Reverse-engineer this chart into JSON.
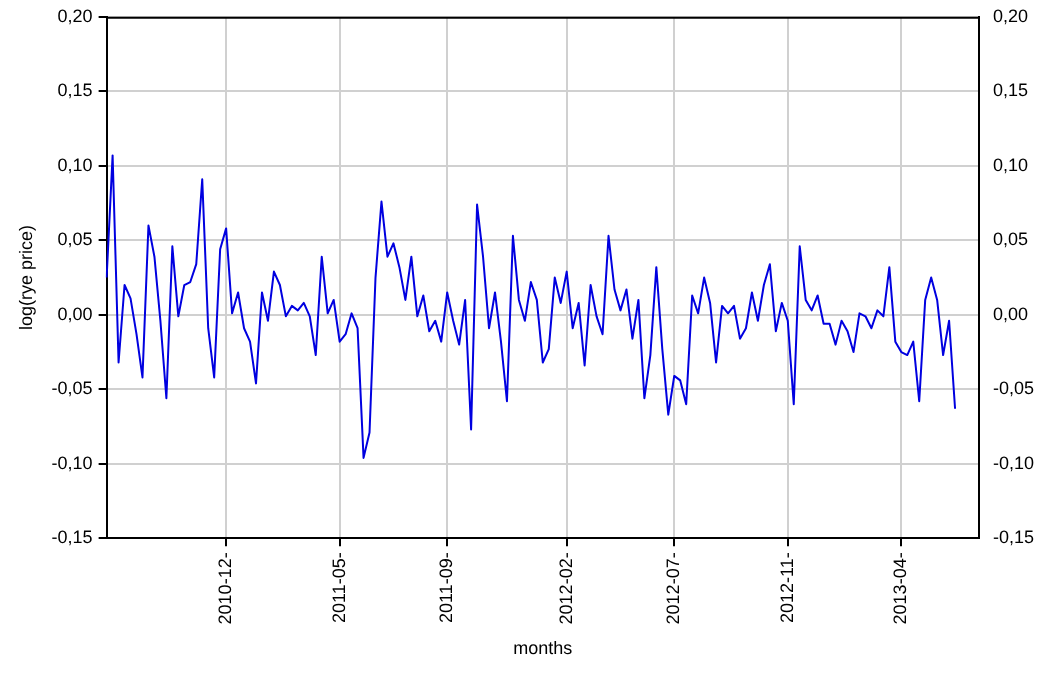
{
  "chart_data": {
    "type": "line",
    "xlabel": "months",
    "ylabel": "log(rye price)",
    "categories": [
      null,
      null,
      null,
      null,
      null,
      null,
      null,
      null,
      null,
      null,
      null,
      null,
      null,
      null,
      null,
      null,
      null,
      null,
      null,
      null,
      "2010-12-",
      null,
      null,
      null,
      null,
      null,
      null,
      null,
      null,
      null,
      null,
      null,
      null,
      null,
      null,
      null,
      null,
      null,
      null,
      "2011-05-",
      null,
      null,
      null,
      null,
      null,
      null,
      null,
      null,
      null,
      null,
      null,
      null,
      null,
      null,
      null,
      null,
      null,
      "2011-09-",
      null,
      null,
      null,
      null,
      null,
      null,
      null,
      null,
      null,
      null,
      null,
      null,
      null,
      null,
      null,
      null,
      null,
      null,
      null,
      "2012-02-",
      null,
      null,
      null,
      null,
      null,
      null,
      null,
      null,
      null,
      null,
      null,
      null,
      null,
      null,
      null,
      null,
      null,
      "2012-07-",
      null,
      null,
      null,
      null,
      null,
      null,
      null,
      null,
      null,
      null,
      null,
      null,
      null,
      null,
      null,
      null,
      null,
      null,
      "2012-11-",
      null,
      null,
      null,
      null,
      null,
      null,
      null,
      null,
      null,
      null,
      null,
      null,
      null,
      null,
      null,
      null,
      null,
      null,
      "2013-04-",
      null,
      null,
      null,
      null,
      null,
      null,
      null,
      null,
      null,
      null,
      null,
      null,
      null
    ],
    "ylim": [
      -0.15,
      0.2
    ],
    "yticks": [
      {
        "value": -0.15,
        "label": "-0,15"
      },
      {
        "value": -0.1,
        "label": "-0,10"
      },
      {
        "value": -0.05,
        "label": "-0,05"
      },
      {
        "value": 0,
        "label": "0,00"
      },
      {
        "value": 0.05,
        "label": "0,05"
      },
      {
        "value": 0.1,
        "label": "0,10"
      },
      {
        "value": 0.15,
        "label": "0,15"
      },
      {
        "value": 0.2,
        "label": "0,20"
      }
    ],
    "y2lim": [
      -0.15,
      0.2
    ],
    "y2ticks": [
      {
        "value": -0.15,
        "label": "-0,15"
      },
      {
        "value": -0.1,
        "label": "-0,10"
      },
      {
        "value": -0.05,
        "label": "-0,05"
      },
      {
        "value": 0,
        "label": "0,00"
      },
      {
        "value": 0.05,
        "label": "0,05"
      },
      {
        "value": 0.1,
        "label": "0,10"
      },
      {
        "value": 0.15,
        "label": "0,15"
      },
      {
        "value": 0.2,
        "label": "0,20"
      }
    ],
    "grid": true,
    "marker": "none",
    "line_style": "solid",
    "series": [
      {
        "color": "#0000e0",
        "values": [
          0.025,
          0.107,
          -0.032,
          0.02,
          0.011,
          -0.013,
          -0.042,
          0.06,
          0.039,
          -0.004,
          -0.056,
          0.046,
          -0.001,
          0.02,
          0.022,
          0.034,
          0.091,
          -0.009,
          -0.042,
          0.044,
          0.058,
          0.001,
          0.015,
          -0.009,
          -0.018,
          -0.046,
          0.015,
          -0.004,
          0.029,
          0.02,
          -0.001,
          0.006,
          0.003,
          0.008,
          -0.001,
          -0.027,
          0.039,
          0.001,
          0.01,
          -0.018,
          -0.013,
          0.001,
          -0.009,
          -0.096,
          -0.079,
          0.025,
          0.076,
          0.039,
          0.048,
          0.032,
          0.01,
          0.039,
          -0.001,
          0.013,
          -0.011,
          -0.004,
          -0.018,
          0.015,
          -0.004,
          -0.02,
          0.01,
          -0.077,
          0.074,
          0.039,
          -0.009,
          0.015,
          -0.018,
          -0.058,
          0.053,
          0.01,
          -0.004,
          0.022,
          0.01,
          -0.032,
          -0.023,
          0.025,
          0.008,
          0.029,
          -0.009,
          0.008,
          -0.034,
          0.02,
          -0.001,
          -0.013,
          0.053,
          0.017,
          0.003,
          0.017,
          -0.016,
          0.01,
          -0.056,
          -0.027,
          0.032,
          -0.023,
          -0.067,
          -0.041,
          -0.044,
          -0.06,
          0.013,
          0.001,
          0.025,
          0.008,
          -0.032,
          0.006,
          0.001,
          0.006,
          -0.016,
          -0.009,
          0.015,
          -0.004,
          0.02,
          0.034,
          -0.011,
          0.008,
          -0.004,
          -0.06,
          0.046,
          0.01,
          0.003,
          0.013,
          -0.006,
          -0.006,
          -0.02,
          -0.004,
          -0.011,
          -0.025,
          0.001,
          -0.001,
          -0.009,
          0.003,
          -0.001,
          0.032,
          -0.018,
          -0.025,
          -0.027,
          -0.018,
          -0.058,
          0.01,
          0.025,
          0.01,
          -0.027,
          -0.004,
          -0.063,
          null,
          null,
          null,
          null
        ]
      }
    ]
  }
}
